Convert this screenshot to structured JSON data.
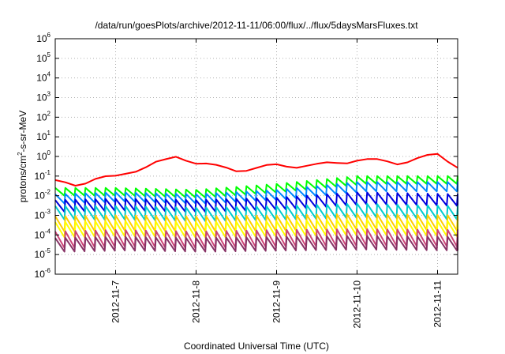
{
  "chart_data": {
    "type": "line",
    "title": "/data/run/goesPlots/archive/2012-11-11/06:00/flux/../flux/5daysMarsFluxes.txt",
    "xlabel": "Coordinated Universal Time (UTC)",
    "ylabel": {
      "prefix": "protons/cm",
      "sup": "2",
      "suffix": "-s-sr-MeV"
    },
    "y_scale": "log",
    "ylim": [
      1e-06,
      1000000.0
    ],
    "y_ticks": [
      {
        "base": "10",
        "exp": "-6"
      },
      {
        "base": "10",
        "exp": "-5"
      },
      {
        "base": "10",
        "exp": "-4"
      },
      {
        "base": "10",
        "exp": "-3"
      },
      {
        "base": "10",
        "exp": "-2"
      },
      {
        "base": "10",
        "exp": "-1"
      },
      {
        "base": "10",
        "exp": "0"
      },
      {
        "base": "10",
        "exp": "1"
      },
      {
        "base": "10",
        "exp": "2"
      },
      {
        "base": "10",
        "exp": "3"
      },
      {
        "base": "10",
        "exp": "4"
      },
      {
        "base": "10",
        "exp": "5"
      },
      {
        "base": "10",
        "exp": "6"
      }
    ],
    "xlim": [
      "2012-11-06 06:00",
      "2012-11-11 06:00"
    ],
    "x_ticks": [
      "2012-11-7",
      "2012-11-8",
      "2012-11-9",
      "2012-11-10",
      "2012-11-11"
    ],
    "grid": true,
    "legend": "none",
    "sawtooth_period_hours": 3,
    "series": [
      {
        "color": "#ff0000",
        "pattern": "step",
        "peaks": [
          [
            "2012-11-06 06:00",
            0.05
          ],
          [
            "2012-11-06 12:00",
            0.04
          ],
          [
            "2012-11-06 18:00",
            0.07
          ],
          [
            "2012-11-07 00:00",
            0.09
          ],
          [
            "2012-11-07 03:00",
            0.15
          ],
          [
            "2012-11-07 06:00",
            0.22
          ],
          [
            "2012-11-07 09:00",
            0.3
          ],
          [
            "2012-11-07 12:00",
            0.45
          ],
          [
            "2012-11-07 15:00",
            0.6
          ],
          [
            "2012-11-07 18:00",
            1.0
          ],
          [
            "2012-11-07 21:00",
            0.8
          ],
          [
            "2012-11-08 00:00",
            0.5
          ],
          [
            "2012-11-08 06:00",
            0.3
          ],
          [
            "2012-11-08 12:00",
            0.22
          ],
          [
            "2012-11-08 18:00",
            0.25
          ],
          [
            "2012-11-09 00:00",
            0.35
          ],
          [
            "2012-11-09 12:00",
            0.35
          ],
          [
            "2012-11-10 00:00",
            0.7
          ],
          [
            "2012-11-10 12:00",
            0.5
          ],
          [
            "2012-11-11 00:00",
            1.2
          ],
          [
            "2012-11-11 06:00",
            0.35
          ]
        ]
      },
      {
        "color": "#00ff00",
        "pattern": "sawtooth",
        "peaks": [
          [
            "2012-11-06 06:00",
            0.025
          ],
          [
            "2012-11-07 00:00",
            0.025
          ],
          [
            "2012-11-08 00:00",
            0.02
          ],
          [
            "2012-11-09 00:00",
            0.04
          ],
          [
            "2012-11-10 00:00",
            0.1
          ],
          [
            "2012-11-11 06:00",
            0.1
          ]
        ],
        "drop": 2.5
      },
      {
        "color": "#0088ff",
        "pattern": "sawtooth",
        "peaks": [
          [
            "2012-11-06 06:00",
            0.012
          ],
          [
            "2012-11-07 00:00",
            0.015
          ],
          [
            "2012-11-08 00:00",
            0.012
          ],
          [
            "2012-11-09 00:00",
            0.02
          ],
          [
            "2012-11-10 00:00",
            0.05
          ],
          [
            "2012-11-11 06:00",
            0.05
          ]
        ],
        "drop": 3
      },
      {
        "color": "#0000dd",
        "pattern": "sawtooth",
        "peaks": [
          [
            "2012-11-06 06:00",
            0.006
          ],
          [
            "2012-11-07 00:00",
            0.007
          ],
          [
            "2012-11-08 00:00",
            0.006
          ],
          [
            "2012-11-09 00:00",
            0.008
          ],
          [
            "2012-11-10 00:00",
            0.015
          ],
          [
            "2012-11-11 06:00",
            0.012
          ]
        ],
        "drop": 4
      },
      {
        "color": "#00cccc",
        "pattern": "sawtooth",
        "peaks": [
          [
            "2012-11-06 06:00",
            0.003
          ],
          [
            "2012-11-07 00:00",
            0.003
          ],
          [
            "2012-11-08 00:00",
            0.0025
          ],
          [
            "2012-11-09 00:00",
            0.003
          ],
          [
            "2012-11-10 00:00",
            0.004
          ],
          [
            "2012-11-11 06:00",
            0.003
          ]
        ],
        "drop": 5
      },
      {
        "color": "#ffcc00",
        "pattern": "sawtooth",
        "peaks": [
          [
            "2012-11-06 06:00",
            0.0009
          ],
          [
            "2012-11-07 00:00",
            0.001
          ],
          [
            "2012-11-08 00:00",
            0.0009
          ],
          [
            "2012-11-09 00:00",
            0.001
          ],
          [
            "2012-11-10 00:00",
            0.0012
          ],
          [
            "2012-11-11 06:00",
            0.001
          ]
        ],
        "drop": 6
      },
      {
        "color": "#ffff00",
        "pattern": "sawtooth",
        "peaks": [
          [
            "2012-11-06 06:00",
            0.00045
          ],
          [
            "2012-11-07 00:00",
            0.0005
          ],
          [
            "2012-11-08 00:00",
            0.00045
          ],
          [
            "2012-11-09 00:00",
            0.0005
          ],
          [
            "2012-11-10 00:00",
            0.0006
          ],
          [
            "2012-11-11 06:00",
            0.0005
          ]
        ],
        "drop": 6
      },
      {
        "color": "#cc4477",
        "pattern": "sawtooth",
        "peaks": [
          [
            "2012-11-06 06:00",
            0.00015
          ],
          [
            "2012-11-07 00:00",
            0.00018
          ],
          [
            "2012-11-08 00:00",
            0.00015
          ],
          [
            "2012-11-09 00:00",
            0.00018
          ],
          [
            "2012-11-10 00:00",
            0.0002
          ],
          [
            "2012-11-11 06:00",
            0.00018
          ]
        ],
        "drop": 7
      },
      {
        "color": "#883366",
        "pattern": "sawtooth",
        "peaks": [
          [
            "2012-11-06 06:00",
            7e-05
          ],
          [
            "2012-11-07 00:00",
            8e-05
          ],
          [
            "2012-11-08 00:00",
            7e-05
          ],
          [
            "2012-11-09 00:00",
            8e-05
          ],
          [
            "2012-11-10 00:00",
            9e-05
          ],
          [
            "2012-11-11 06:00",
            8e-05
          ]
        ],
        "drop": 5
      }
    ]
  }
}
